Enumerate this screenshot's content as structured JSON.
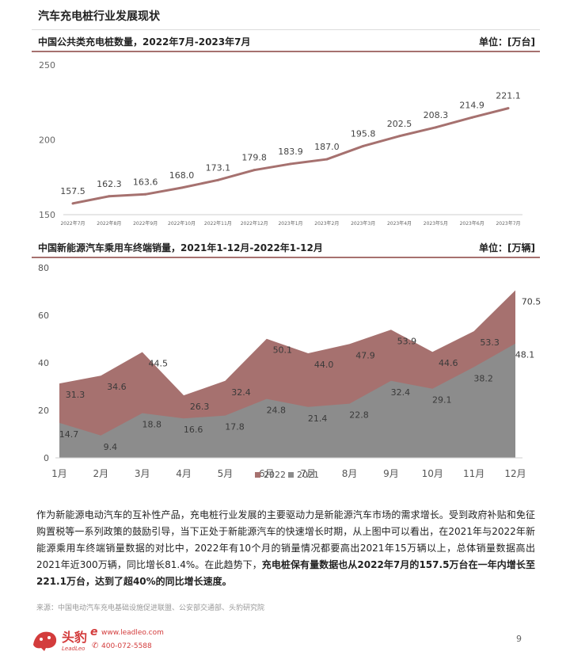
{
  "page": {
    "title": "汽车充电桩行业发展现状",
    "page_number": "9"
  },
  "chart1_header": {
    "title": "中国公共类充电桩数量，2022年7月-2023年7月",
    "unit": "单位：[万台]"
  },
  "chart2_header": {
    "title": "中国新能源汽车乘用车终端销量，2021年1-12月-2022年1-12月",
    "unit": "单位：[万辆]"
  },
  "chart_data": [
    {
      "type": "line",
      "title": "中国公共类充电桩数量，2022年7月-2023年7月",
      "ylabel": "单位：[万台]",
      "ylim": [
        150,
        250
      ],
      "yticks": [
        150,
        200,
        250
      ],
      "categories": [
        "2022年7月",
        "2022年8月",
        "2022年9月",
        "2022年10月",
        "2022年11月",
        "2022年12月",
        "2023年1月",
        "2023年2月",
        "2023年3月",
        "2023年4月",
        "2023年5月",
        "2023年6月",
        "2023年7月"
      ],
      "series": [
        {
          "values": [
            157.5,
            162.3,
            163.6,
            168.0,
            173.1,
            179.8,
            183.9,
            187.0,
            195.8,
            202.5,
            208.3,
            214.9,
            221.1
          ],
          "color": "#a6716f"
        }
      ],
      "labels": [
        "157.5",
        "162.3",
        "163.6",
        "168.0",
        "173.1",
        "179.8",
        "183.9",
        "187.0",
        "195.8",
        "202.5",
        "208.3",
        "214.9",
        "221.1"
      ],
      "grid": false
    },
    {
      "type": "area",
      "title": "中国新能源汽车乘用车终端销量，2021年1-12月-2022年1-12月",
      "ylabel": "单位：[万辆]",
      "ylim": [
        0,
        80
      ],
      "yticks": [
        0,
        20,
        40,
        60,
        80
      ],
      "categories": [
        "1月",
        "2月",
        "3月",
        "4月",
        "5月",
        "6月",
        "7月",
        "8月",
        "9月",
        "10月",
        "11月",
        "12月"
      ],
      "series": [
        {
          "name": "2022",
          "values": [
            31.3,
            34.6,
            44.5,
            26.3,
            32.4,
            50.1,
            44.0,
            47.9,
            53.9,
            44.6,
            53.3,
            70.5
          ],
          "color": "#a6716f"
        },
        {
          "name": "2021",
          "values": [
            14.7,
            9.4,
            18.8,
            16.6,
            17.8,
            24.8,
            21.4,
            22.8,
            32.4,
            29.1,
            38.2,
            48.1
          ],
          "color": "#8c8c8c"
        }
      ],
      "labels_2022": [
        "31.3",
        "34.6",
        "44.5",
        "26.3",
        "32.4",
        "50.1",
        "44.0",
        "47.9",
        "53.9",
        "44.6",
        "53.3",
        "70.5"
      ],
      "labels_2021": [
        "14.7",
        "9.4",
        "18.8",
        "16.6",
        "17.8",
        "24.8",
        "21.4",
        "22.8",
        "32.4",
        "29.1",
        "38.2",
        "48.1"
      ],
      "legend": "bottom",
      "grid": false
    }
  ],
  "paragraph": {
    "part1": "作为新能源电动汽车的互补性产品，充电桩行业发展的主要驱动力是新能源汽车市场的需求增长。受到政府补贴和免征购置税等一系列政策的鼓励引导，当下正处于新能源汽车的快速增长时期，从上图中可以看出，在2021年与2022年新能源乘用车终端销量数据的对比中，2022年有10个月的销量情况都要高出2021年15万辆以上，总体销量数据高出2021年近300万辆，同比增长81.4%。在此趋势下，",
    "part2_bold": "充电桩保有量数据也从2022年7月的157.5万台在一年内增长至221.1万台，达到了超40%的同比增长速度。"
  },
  "source": "来源：中国电动汽车充电基础设施促进联盟、公安部交通部、头豹研究院",
  "footer": {
    "logo_text": "头豹",
    "logo_sub": "LeadLeo",
    "website": "www.leadleo.com",
    "phone": "400-072-5588"
  },
  "colors": {
    "accent": "#a6716f",
    "grey": "#8c8c8c"
  }
}
